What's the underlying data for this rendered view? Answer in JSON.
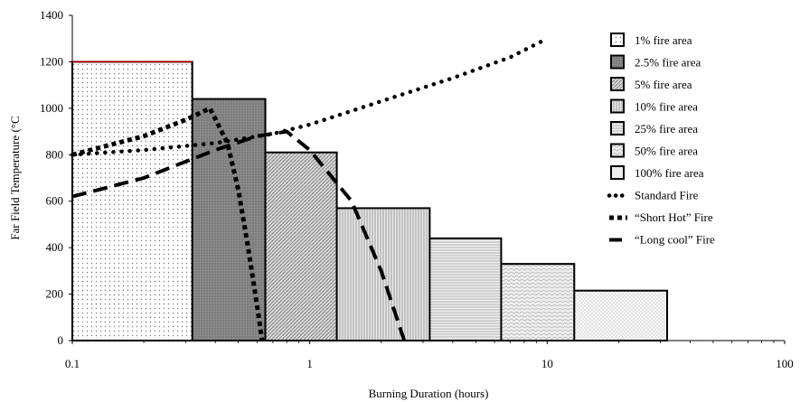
{
  "chart_data": {
    "type": "area",
    "xlabel": "Burning Duration (hours)",
    "ylabel": "Far Field Temperature (°C",
    "xscale": "log",
    "xlim": [
      0.1,
      100
    ],
    "ylim": [
      0,
      1400
    ],
    "xticks": [
      {
        "value": 0.1,
        "label": "0.1"
      },
      {
        "value": 1,
        "label": "1"
      },
      {
        "value": 10,
        "label": "10"
      },
      {
        "value": 100,
        "label": "100"
      }
    ],
    "yticks": [
      {
        "value": 0,
        "label": "0"
      },
      {
        "value": 200,
        "label": "200"
      },
      {
        "value": 400,
        "label": "400"
      },
      {
        "value": 600,
        "label": "600"
      },
      {
        "value": 800,
        "label": "800"
      },
      {
        "value": 1000,
        "label": "1000"
      },
      {
        "value": 1200,
        "label": "1200"
      },
      {
        "value": 1400,
        "label": "1400"
      }
    ],
    "legend_position": "right",
    "fire_areas": [
      {
        "name": "1% fire area",
        "duration": 0.32,
        "temperature": 1200,
        "pattern": "dots-sparse"
      },
      {
        "name": "2.5% fire area",
        "duration": 0.65,
        "temperature": 1040,
        "pattern": "dark-grey"
      },
      {
        "name": "5% fire area",
        "duration": 1.3,
        "temperature": 810,
        "pattern": "diagonal"
      },
      {
        "name": "10% fire area",
        "duration": 3.2,
        "temperature": 570,
        "pattern": "vertical"
      },
      {
        "name": "25% fire area",
        "duration": 6.4,
        "temperature": 440,
        "pattern": "horizontal"
      },
      {
        "name": "50% fire area",
        "duration": 13,
        "temperature": 330,
        "pattern": "wave"
      },
      {
        "name": "100% fire area",
        "duration": 32,
        "temperature": 215,
        "pattern": "dots-fine"
      }
    ],
    "series": [
      {
        "name": "Standard Fire",
        "style": "dotted",
        "points": [
          [
            0.1,
            800
          ],
          [
            0.2,
            820
          ],
          [
            0.4,
            850
          ],
          [
            0.7,
            890
          ],
          [
            1,
            930
          ],
          [
            2,
            1030
          ],
          [
            4,
            1130
          ],
          [
            7,
            1220
          ],
          [
            10,
            1300
          ]
        ]
      },
      {
        "name": "“Short Hot” Fire",
        "style": "short-dash",
        "points": [
          [
            0.1,
            800
          ],
          [
            0.2,
            880
          ],
          [
            0.3,
            950
          ],
          [
            0.38,
            1000
          ],
          [
            0.45,
            850
          ],
          [
            0.5,
            650
          ],
          [
            0.55,
            400
          ],
          [
            0.6,
            150
          ],
          [
            0.63,
            0
          ]
        ]
      },
      {
        "name": "“Long cool” Fire",
        "style": "long-dash",
        "points": [
          [
            0.1,
            620
          ],
          [
            0.2,
            700
          ],
          [
            0.4,
            820
          ],
          [
            0.6,
            880
          ],
          [
            0.8,
            900
          ],
          [
            1.0,
            820
          ],
          [
            1.5,
            600
          ],
          [
            2.0,
            300
          ],
          [
            2.5,
            0
          ]
        ]
      }
    ]
  }
}
